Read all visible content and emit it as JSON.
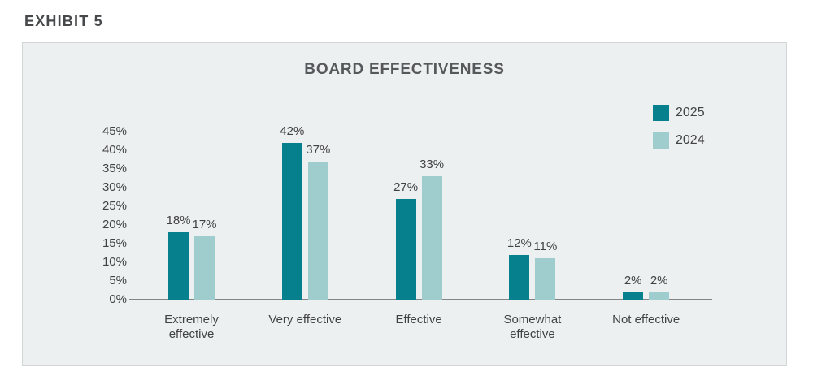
{
  "exhibit_label": "EXHIBIT 5",
  "chart_data": {
    "type": "bar",
    "title": "BOARD EFFECTIVENESS",
    "categories": [
      "Extremely effective",
      "Very effective",
      "Effective",
      "Somewhat effective",
      "Not effective"
    ],
    "series": [
      {
        "name": "2025",
        "color": "#07808d",
        "values": [
          18,
          42,
          27,
          12,
          2
        ]
      },
      {
        "name": "2024",
        "color": "#9fcdce",
        "values": [
          17,
          37,
          33,
          11,
          2
        ]
      }
    ],
    "value_suffix": "%",
    "y_ticks": [
      "0%",
      "5%",
      "10%",
      "15%",
      "20%",
      "25%",
      "30%",
      "35%",
      "40%",
      "45%"
    ],
    "ylim": [
      0,
      45
    ],
    "grid": false,
    "legend_position": "top-right",
    "axis_color": "#828689",
    "data_labels": true
  }
}
